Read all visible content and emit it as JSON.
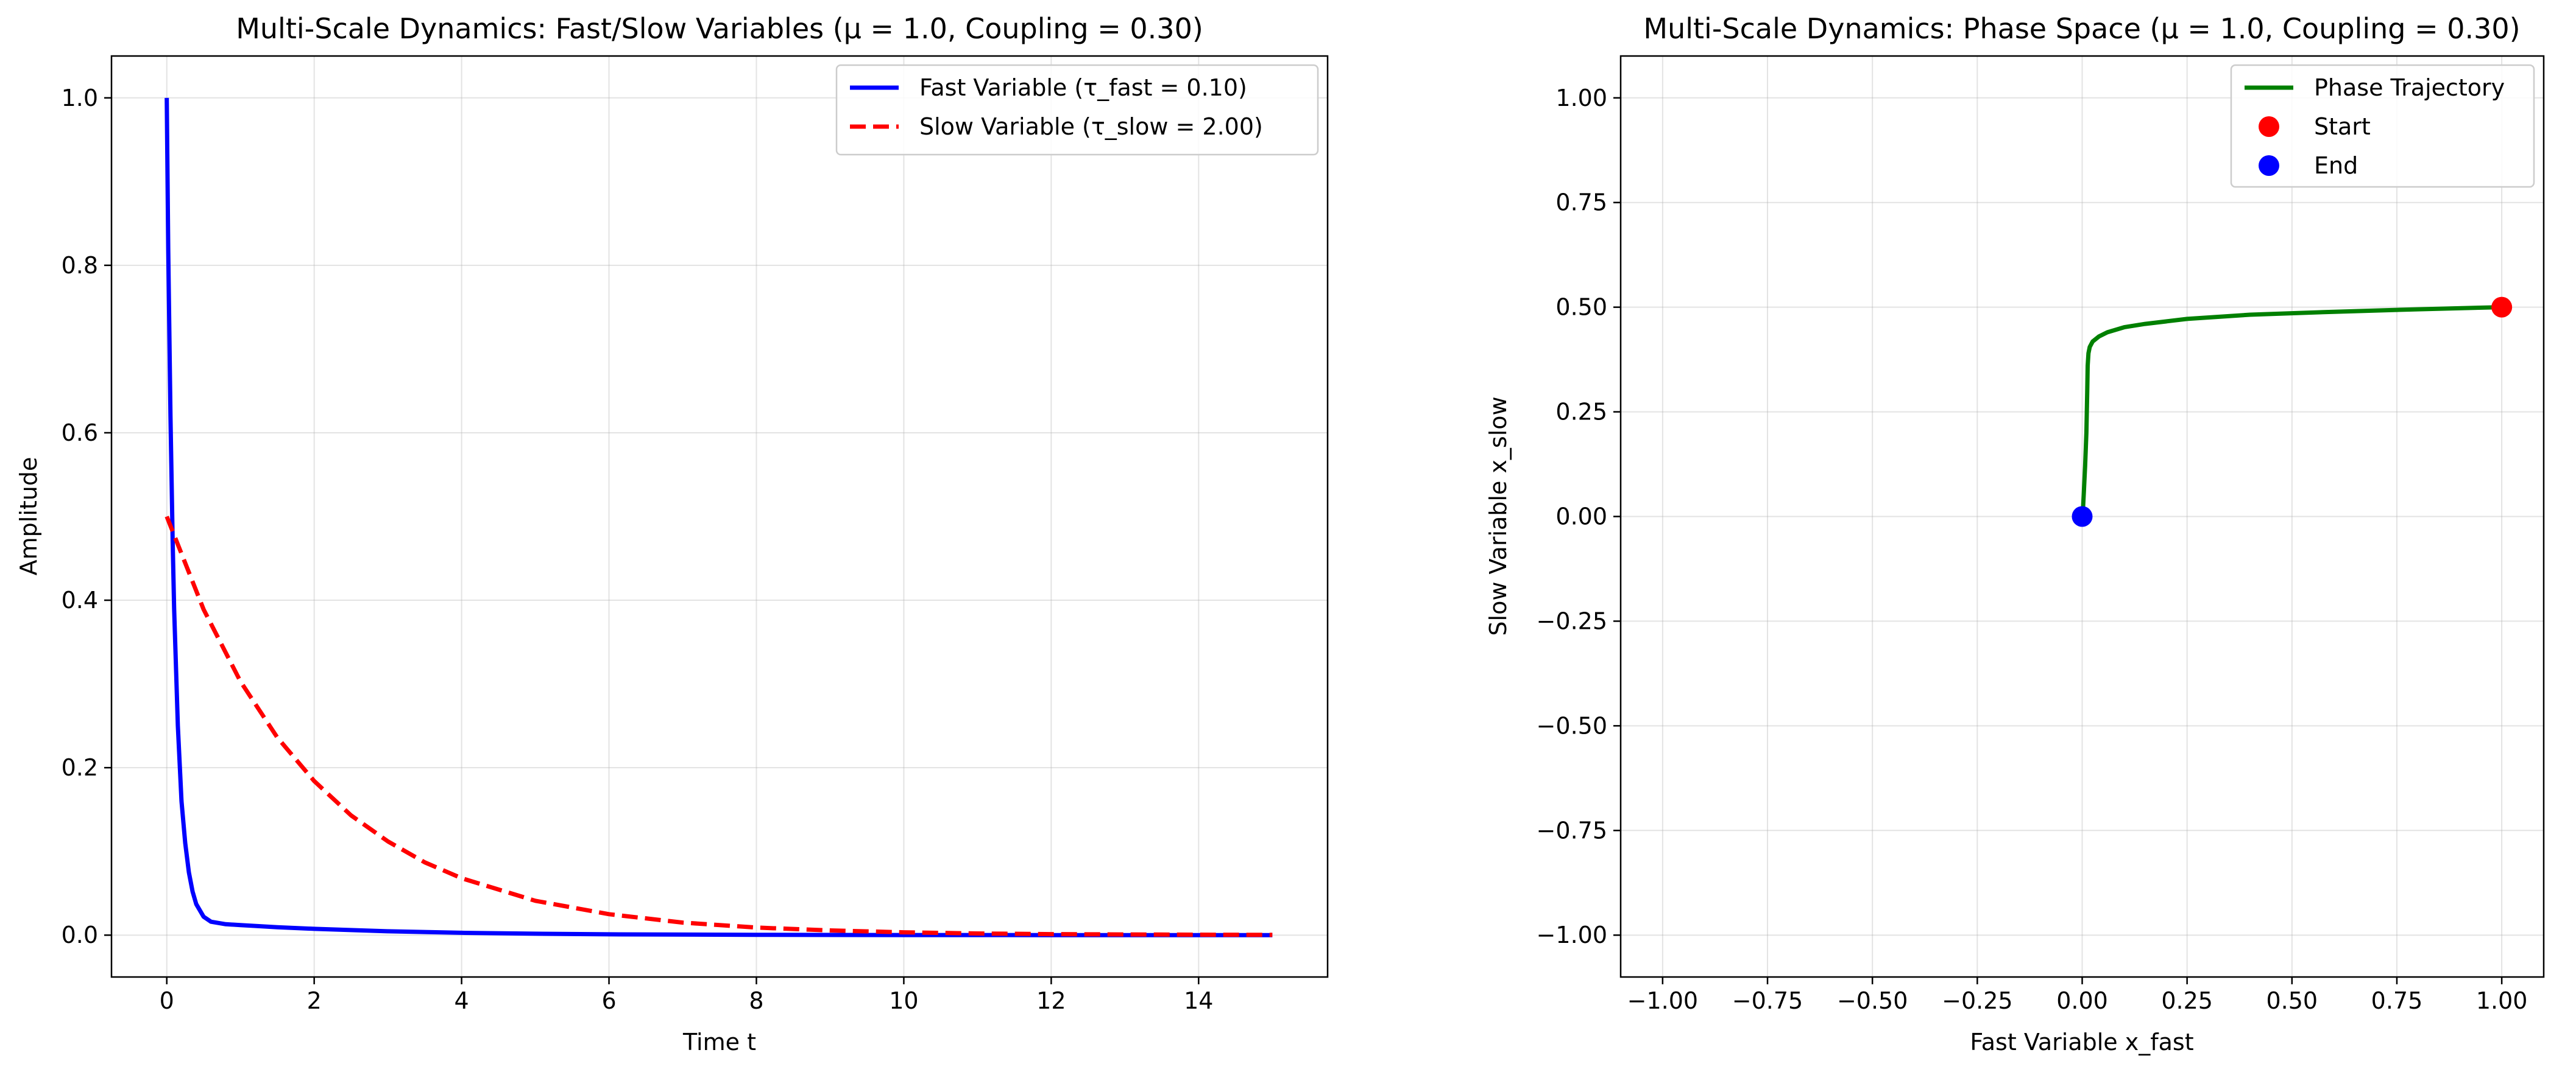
{
  "chart_data": [
    {
      "type": "line",
      "title": "Multi-Scale Dynamics: Fast/Slow Variables (μ = 1.0, Coupling = 0.30)",
      "xlabel": "Time t",
      "ylabel": "Amplitude",
      "xlim": [
        -0.75,
        15.75
      ],
      "ylim": [
        -0.05,
        1.05
      ],
      "xticks": [
        0,
        2,
        4,
        6,
        8,
        10,
        12,
        14
      ],
      "xtick_labels": [
        "0",
        "2",
        "4",
        "6",
        "8",
        "10",
        "12",
        "14"
      ],
      "yticks": [
        0.0,
        0.2,
        0.4,
        0.6,
        0.8,
        1.0
      ],
      "ytick_labels": [
        "0.0",
        "0.2",
        "0.4",
        "0.6",
        "0.8",
        "1.0"
      ],
      "grid": true,
      "legend_position": "top-right",
      "series": [
        {
          "name": "Fast Variable (τ_fast = 0.10)",
          "color": "#0000ff",
          "style": "solid",
          "x": [
            0,
            0.02,
            0.05,
            0.08,
            0.1,
            0.15,
            0.2,
            0.25,
            0.3,
            0.35,
            0.4,
            0.5,
            0.6,
            0.8,
            1.0,
            1.5,
            2,
            3,
            4,
            5,
            6,
            8,
            10,
            12,
            15
          ],
          "y": [
            1.0,
            0.82,
            0.62,
            0.47,
            0.39,
            0.25,
            0.16,
            0.11,
            0.075,
            0.052,
            0.037,
            0.022,
            0.016,
            0.013,
            0.012,
            0.0095,
            0.0075,
            0.0046,
            0.0028,
            0.0017,
            0.001,
            0.0004,
            0.0001,
            5e-05,
            0.0
          ]
        },
        {
          "name": "Slow Variable (τ_slow = 2.00)",
          "color": "#ff0000",
          "style": "dashed",
          "x": [
            0,
            0.5,
            1,
            1.5,
            2,
            2.5,
            3,
            3.5,
            4,
            5,
            6,
            7,
            8,
            9,
            10,
            11,
            12,
            13,
            14,
            15
          ],
          "y": [
            0.5,
            0.389,
            0.303,
            0.236,
            0.184,
            0.143,
            0.112,
            0.087,
            0.068,
            0.041,
            0.025,
            0.015,
            0.009,
            0.0056,
            0.0034,
            0.002,
            0.0012,
            0.0008,
            0.0005,
            0.0003
          ]
        }
      ]
    },
    {
      "type": "line",
      "title": "Multi-Scale Dynamics: Phase Space (μ = 1.0, Coupling = 0.30)",
      "xlabel": "Fast Variable x_fast",
      "ylabel": "Slow Variable x_slow",
      "xlim": [
        -1.1,
        1.1
      ],
      "ylim": [
        -1.1,
        1.1
      ],
      "xticks": [
        -1.0,
        -0.75,
        -0.5,
        -0.25,
        0.0,
        0.25,
        0.5,
        0.75,
        1.0
      ],
      "xtick_labels": [
        "−1.00",
        "−0.75",
        "−0.50",
        "−0.25",
        "0.00",
        "0.25",
        "0.50",
        "0.75",
        "1.00"
      ],
      "yticks": [
        -1.0,
        -0.75,
        -0.5,
        -0.25,
        0.0,
        0.25,
        0.5,
        0.75,
        1.0
      ],
      "ytick_labels": [
        "−1.00",
        "−0.75",
        "−0.50",
        "−0.25",
        "0.00",
        "0.25",
        "0.50",
        "0.75",
        "1.00"
      ],
      "grid": true,
      "legend_position": "top-right",
      "series": [
        {
          "name": "Phase Trajectory",
          "color": "#008000",
          "style": "solid",
          "x": [
            1.0,
            0.8,
            0.6,
            0.4,
            0.25,
            0.15,
            0.1,
            0.06,
            0.04,
            0.025,
            0.018,
            0.015,
            0.013,
            0.012,
            0.01,
            0.007,
            0.004,
            0.002,
            0.0
          ],
          "y": [
            0.5,
            0.495,
            0.489,
            0.482,
            0.472,
            0.46,
            0.452,
            0.44,
            0.43,
            0.418,
            0.405,
            0.39,
            0.36,
            0.3,
            0.2,
            0.12,
            0.06,
            0.02,
            0.0
          ]
        },
        {
          "name": "Start",
          "color": "#ff0000",
          "style": "marker",
          "x": [
            1.0
          ],
          "y": [
            0.5
          ]
        },
        {
          "name": "End",
          "color": "#0000ff",
          "style": "marker",
          "x": [
            0.0
          ],
          "y": [
            0.0
          ]
        }
      ]
    }
  ]
}
